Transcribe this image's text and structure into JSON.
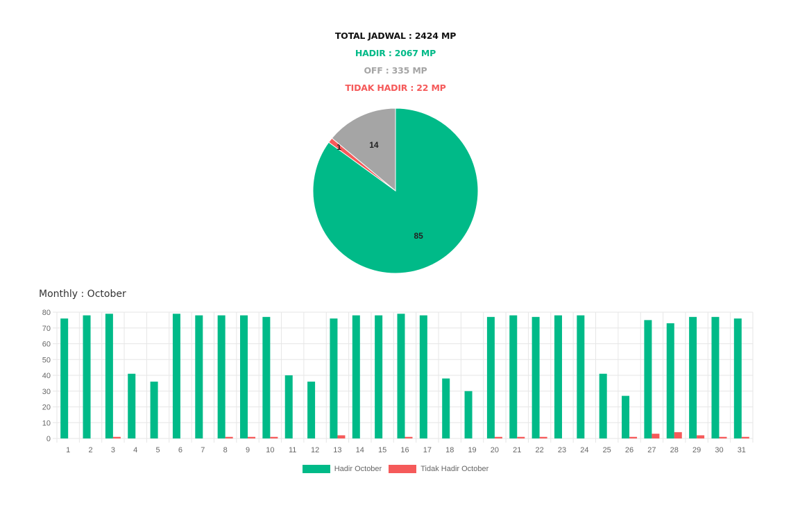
{
  "summary": {
    "total": "TOTAL JADWAL : 2424 MP",
    "hadir": "HADIR : 2067 MP",
    "off": "OFF : 335 MP",
    "tidak_hadir": "TIDAK HADIR : 22 MP"
  },
  "colors": {
    "hadir": "#00BA88",
    "off": "#A5A5A5",
    "tidak_hadir": "#F55A5A",
    "grid": "#E6E6E6",
    "total_text": "#111111"
  },
  "monthly_title": "Monthly : October",
  "chart_data": [
    {
      "type": "pie",
      "slices": [
        {
          "label": "Hadir",
          "value": 85,
          "color": "#00BA88"
        },
        {
          "label": "Tidak Hadir",
          "value": 1,
          "color": "#F55A5A"
        },
        {
          "label": "Off",
          "value": 14,
          "color": "#A5A5A5"
        }
      ],
      "slice_labels": [
        "85",
        "1",
        "14"
      ]
    },
    {
      "type": "bar",
      "categories": [
        "1",
        "2",
        "3",
        "4",
        "5",
        "6",
        "7",
        "8",
        "9",
        "10",
        "11",
        "12",
        "13",
        "14",
        "15",
        "16",
        "17",
        "18",
        "19",
        "20",
        "21",
        "22",
        "23",
        "24",
        "25",
        "26",
        "27",
        "28",
        "29",
        "30",
        "31"
      ],
      "series": [
        {
          "name": "Hadir October",
          "color": "#00BA88",
          "values": [
            76,
            78,
            79,
            41,
            36,
            79,
            78,
            78,
            78,
            77,
            40,
            36,
            76,
            78,
            78,
            79,
            78,
            38,
            30,
            77,
            78,
            77,
            78,
            78,
            41,
            27,
            75,
            73,
            77,
            77,
            76
          ]
        },
        {
          "name": "Tidak Hadir October",
          "color": "#F55A5A",
          "values": [
            0,
            0,
            1,
            0,
            0,
            0,
            0,
            1,
            1,
            1,
            0,
            0,
            2,
            0,
            0,
            1,
            0,
            0,
            0,
            1,
            1,
            1,
            0,
            0,
            0,
            1,
            3,
            4,
            2,
            1,
            1
          ]
        }
      ],
      "ylim": [
        0,
        80
      ],
      "yticks": [
        "0",
        "10",
        "20",
        "30",
        "40",
        "50",
        "60",
        "70",
        "80"
      ],
      "grid": true,
      "legend": "bottom"
    }
  ]
}
